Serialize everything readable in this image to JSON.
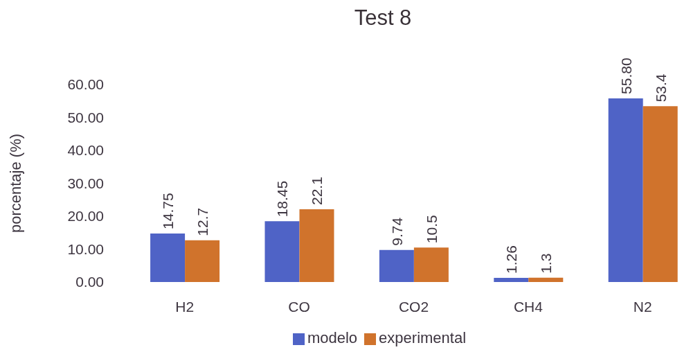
{
  "chart_data": {
    "type": "bar",
    "title": "Test 8",
    "ylabel": "porcentaje (%)",
    "categories": [
      "H2",
      "CO",
      "CO2",
      "CH4",
      "N2"
    ],
    "series": [
      {
        "name": "modelo",
        "color": "#4f63c6",
        "values": [
          14.75,
          18.45,
          9.74,
          1.26,
          55.8
        ],
        "value_labels": [
          "14.75",
          "18.45",
          "9.74",
          "1.26",
          "55.80"
        ]
      },
      {
        "name": "experimental",
        "color": "#d0732c",
        "values": [
          12.7,
          22.1,
          10.5,
          1.3,
          53.4
        ],
        "value_labels": [
          "12.7",
          "22.1",
          "10.5",
          "1.3",
          "53.4"
        ]
      }
    ],
    "ylim": [
      0,
      60
    ],
    "yticks": [
      {
        "value": 0,
        "label": "0.00"
      },
      {
        "value": 10,
        "label": "10.00"
      },
      {
        "value": 20,
        "label": "20.00"
      },
      {
        "value": 30,
        "label": "30.00"
      },
      {
        "value": 40,
        "label": "40.00"
      },
      {
        "value": 50,
        "label": "50.00"
      },
      {
        "value": 60,
        "label": "60.00"
      }
    ],
    "legend": "bottom"
  }
}
